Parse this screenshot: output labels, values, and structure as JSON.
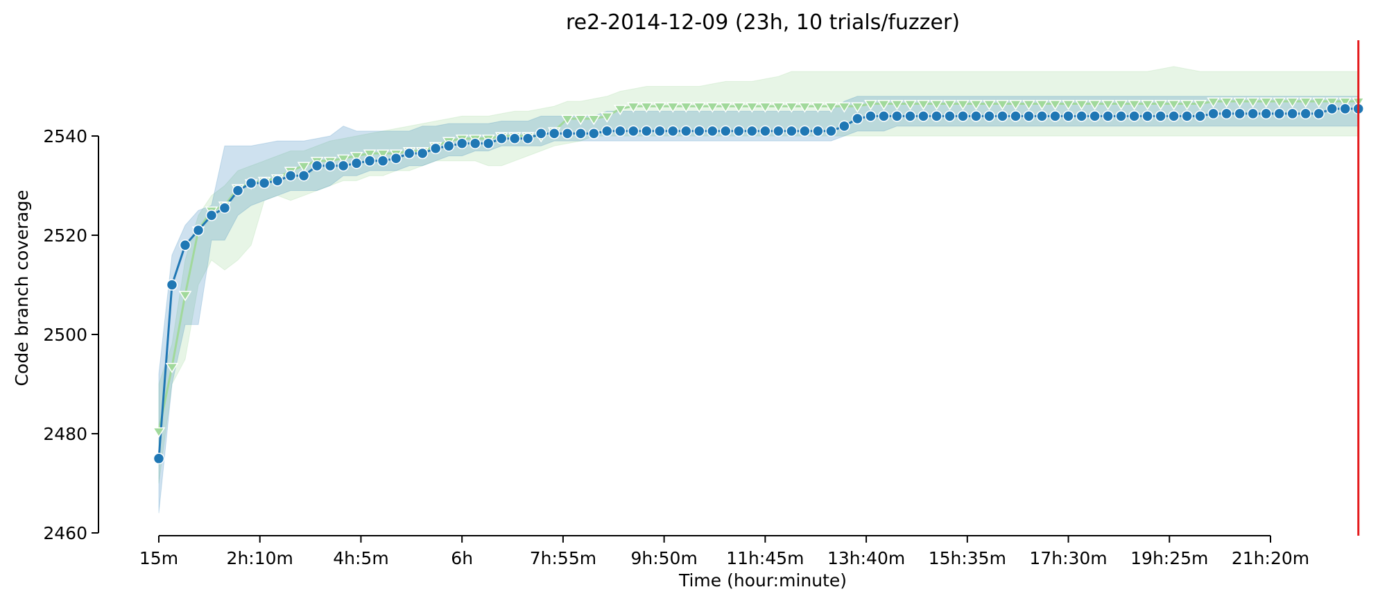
{
  "chart_data": {
    "type": "line",
    "title": "re2-2014-12-09 (23h, 10 trials/fuzzer)",
    "xlabel": "Time (hour:minute)",
    "ylabel": "Code branch coverage",
    "x_unit": "minutes",
    "xlim": [
      15,
      1380
    ],
    "ylim": [
      2460,
      2550
    ],
    "x_ticks": [
      15,
      130,
      245,
      360,
      475,
      590,
      705,
      820,
      935,
      1050,
      1165,
      1280
    ],
    "x_tick_labels": [
      "15m",
      "2h:10m",
      "4h:5m",
      "6h",
      "7h:55m",
      "9h:50m",
      "11h:45m",
      "13h:40m",
      "15h:35m",
      "17h:30m",
      "19h:25m",
      "21h:20m"
    ],
    "y_ticks": [
      2460,
      2480,
      2500,
      2520,
      2540
    ],
    "y_tick_labels": [
      "2460",
      "2480",
      "2500",
      "2520",
      "2540"
    ],
    "grid": false,
    "legend": "none",
    "vline": {
      "x": 1380,
      "color": "#e41a1c"
    },
    "x": [
      15,
      30,
      45,
      60,
      75,
      90,
      105,
      120,
      135,
      150,
      165,
      180,
      195,
      210,
      225,
      240,
      255,
      270,
      285,
      300,
      315,
      330,
      345,
      360,
      375,
      390,
      405,
      420,
      435,
      450,
      465,
      480,
      495,
      510,
      525,
      540,
      555,
      570,
      585,
      600,
      615,
      630,
      645,
      660,
      675,
      690,
      705,
      720,
      735,
      750,
      765,
      780,
      795,
      810,
      825,
      840,
      855,
      870,
      885,
      900,
      915,
      930,
      945,
      960,
      975,
      990,
      1005,
      1020,
      1035,
      1050,
      1065,
      1080,
      1095,
      1110,
      1125,
      1140,
      1155,
      1170,
      1185,
      1200,
      1215,
      1230,
      1245,
      1260,
      1275,
      1290,
      1305,
      1320,
      1335,
      1350,
      1365,
      1380
    ],
    "series": [
      {
        "color": "#a1d99b",
        "marker": "triangle-down",
        "values": [
          2480.5,
          2493.5,
          2508,
          2521,
          2525,
          2526,
          2529.5,
          2530.5,
          2531,
          2531.5,
          2533,
          2534,
          2535,
          2535,
          2535.5,
          2536,
          2536.5,
          2536.5,
          2536.5,
          2537,
          2537,
          2538,
          2539,
          2539.5,
          2539.5,
          2539.5,
          2540,
          2540,
          2540,
          2540,
          2541,
          2543.5,
          2543.5,
          2543.5,
          2544,
          2545.5,
          2546,
          2546,
          2546,
          2546,
          2546,
          2546,
          2546,
          2546,
          2546,
          2546,
          2546,
          2546,
          2546,
          2546,
          2546,
          2546,
          2546,
          2546,
          2546.5,
          2546.5,
          2546.5,
          2546.5,
          2546.5,
          2546.5,
          2546.5,
          2546.5,
          2546.5,
          2546.5,
          2546.5,
          2546.5,
          2546.5,
          2546.5,
          2546.5,
          2546.5,
          2546.5,
          2546.5,
          2546.5,
          2546.5,
          2546.5,
          2546.5,
          2546.5,
          2546.5,
          2546.5,
          2546.5,
          2547,
          2547,
          2547,
          2547,
          2547,
          2547,
          2547,
          2547,
          2547,
          2547,
          2547,
          2547
        ],
        "lower": [
          2470,
          2490,
          2495,
          2510,
          2515,
          2513,
          2515,
          2518,
          2527,
          2528,
          2527,
          2528,
          2529,
          2530,
          2531,
          2531,
          2532,
          2532,
          2533,
          2533,
          2534,
          2535,
          2535,
          2535,
          2535,
          2534,
          2534,
          2535,
          2536,
          2537,
          2538,
          2538.5,
          2539,
          2540,
          2540,
          2540,
          2540,
          2540,
          2540,
          2540,
          2540,
          2540,
          2540,
          2540,
          2540,
          2540,
          2540,
          2540,
          2540,
          2540,
          2540,
          2540,
          2540,
          2540,
          2540,
          2540,
          2540,
          2540,
          2540,
          2540,
          2540,
          2540,
          2540,
          2540,
          2540,
          2540,
          2540,
          2540,
          2540,
          2540,
          2540,
          2540,
          2540,
          2540,
          2540,
          2540,
          2540,
          2540,
          2540,
          2540,
          2540,
          2540,
          2540,
          2540,
          2540,
          2540,
          2540,
          2540,
          2540,
          2540,
          2540,
          2540
        ],
        "upper": [
          2490,
          2498,
          2515,
          2524,
          2528,
          2530,
          2533,
          2534,
          2535,
          2536,
          2537,
          2537,
          2538,
          2539,
          2539.5,
          2540,
          2540.5,
          2541,
          2541.5,
          2542,
          2542.5,
          2543,
          2543.5,
          2544,
          2544,
          2544,
          2544.5,
          2545,
          2545,
          2545.5,
          2546,
          2547,
          2547,
          2547.5,
          2548,
          2549,
          2549.5,
          2550,
          2550,
          2550,
          2550,
          2550,
          2550.5,
          2551,
          2551,
          2551,
          2551.5,
          2552,
          2553,
          2553,
          2553,
          2553,
          2553,
          2553,
          2553,
          2553,
          2553,
          2553,
          2553,
          2553,
          2553,
          2553,
          2553,
          2553,
          2553,
          2553,
          2553,
          2553,
          2553,
          2553,
          2553,
          2553,
          2553,
          2553,
          2553,
          2553,
          2553.5,
          2554,
          2553.5,
          2553,
          2553,
          2553,
          2553,
          2553,
          2553,
          2553,
          2553,
          2553,
          2553,
          2553,
          2553,
          2553
        ]
      },
      {
        "color": "#1f77b4",
        "marker": "circle",
        "values": [
          2475,
          2510,
          2518,
          2521,
          2524,
          2525.5,
          2529,
          2530.5,
          2530.5,
          2531,
          2532,
          2532,
          2534,
          2534,
          2534,
          2534.5,
          2535,
          2535,
          2535.5,
          2536.5,
          2536.5,
          2537.5,
          2538,
          2538.5,
          2538.5,
          2538.5,
          2539.5,
          2539.5,
          2539.5,
          2540.5,
          2540.5,
          2540.5,
          2540.5,
          2540.5,
          2541,
          2541,
          2541,
          2541,
          2541,
          2541,
          2541,
          2541,
          2541,
          2541,
          2541,
          2541,
          2541,
          2541,
          2541,
          2541,
          2541,
          2541,
          2542,
          2543.5,
          2544,
          2544,
          2544,
          2544,
          2544,
          2544,
          2544,
          2544,
          2544,
          2544,
          2544,
          2544,
          2544,
          2544,
          2544,
          2544,
          2544,
          2544,
          2544,
          2544,
          2544,
          2544,
          2544,
          2544,
          2544,
          2544,
          2544.5,
          2544.5,
          2544.5,
          2544.5,
          2544.5,
          2544.5,
          2544.5,
          2544.5,
          2544.5,
          2545.5,
          2545.5,
          2545.5
        ],
        "lower": [
          2464,
          2490,
          2502,
          2502,
          2519,
          2519,
          2524,
          2526,
          2527,
          2528,
          2529,
          2529,
          2529,
          2530,
          2532,
          2532,
          2533,
          2533,
          2533,
          2534,
          2534,
          2535,
          2536,
          2536,
          2537,
          2537,
          2538,
          2538,
          2538,
          2538,
          2539,
          2539,
          2539,
          2539,
          2539,
          2539,
          2539,
          2539,
          2539,
          2539,
          2539,
          2539,
          2539,
          2539,
          2539,
          2539,
          2539,
          2539,
          2539,
          2539,
          2539,
          2539,
          2540,
          2541,
          2541,
          2541,
          2542,
          2542,
          2542,
          2542,
          2542,
          2542,
          2542,
          2542,
          2542,
          2542,
          2542,
          2542,
          2542,
          2542,
          2542,
          2542,
          2542,
          2542,
          2542,
          2542,
          2542,
          2542,
          2542,
          2542,
          2542,
          2542,
          2542,
          2542,
          2542,
          2542,
          2542,
          2542,
          2542,
          2542,
          2542,
          2542
        ],
        "upper": [
          2492,
          2516,
          2522,
          2525,
          2526,
          2538,
          2538,
          2538,
          2538.5,
          2539,
          2539,
          2539,
          2539.5,
          2540,
          2542,
          2541,
          2541,
          2541,
          2541,
          2541,
          2542,
          2542,
          2542.5,
          2542.5,
          2542.5,
          2542.5,
          2543,
          2543,
          2543,
          2544,
          2544,
          2544,
          2544,
          2544,
          2545,
          2545,
          2545,
          2545,
          2545,
          2545,
          2545,
          2545,
          2545,
          2545,
          2545,
          2545,
          2545,
          2545,
          2545,
          2545,
          2545,
          2545,
          2547,
          2548,
          2548,
          2548,
          2548,
          2548,
          2548,
          2548,
          2548,
          2548,
          2548,
          2548,
          2548,
          2548,
          2548,
          2548,
          2548,
          2548,
          2548,
          2548,
          2548,
          2548,
          2548,
          2548,
          2548,
          2548,
          2548,
          2548,
          2548,
          2548,
          2548,
          2548,
          2548,
          2548,
          2548,
          2548,
          2548,
          2548,
          2548,
          2548
        ]
      }
    ]
  }
}
